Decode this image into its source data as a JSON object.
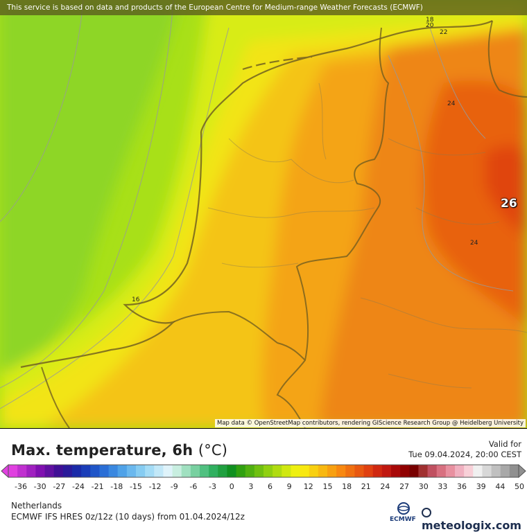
{
  "banner": "This service is based on data and products of the European Centre for Medium-range Weather Forecasts (ECMWF)",
  "attribution": "Map data © OpenStreetMap contributors, rendering GIScience Research Group @ Heidelberg University",
  "map_labels": {
    "max_value": "26",
    "iso_values": [
      "16",
      "18",
      "20",
      "22",
      "24",
      "24"
    ]
  },
  "title": {
    "text": "Max. temperature, 6h",
    "unit": "(°C)"
  },
  "valid": {
    "label": "Valid for",
    "time": "Tue 09.04.2024, 20:00 CEST"
  },
  "legend": {
    "ticks": [
      "-36",
      "-30",
      "-27",
      "-24",
      "-21",
      "-18",
      "-15",
      "-12",
      "-9",
      "-6",
      "-3",
      "0",
      "3",
      "6",
      "9",
      "12",
      "15",
      "18",
      "21",
      "24",
      "27",
      "30",
      "33",
      "36",
      "39",
      "44",
      "50"
    ],
    "colors": [
      "#e040e0",
      "#c030d0",
      "#a020c0",
      "#8010b0",
      "#6010a0",
      "#400f95",
      "#2a1a9a",
      "#1a2aa8",
      "#1a3db8",
      "#1f55c8",
      "#2a6ed6",
      "#3a88e0",
      "#4fa2e8",
      "#6ab8ee",
      "#86ccf2",
      "#a4dcf6",
      "#c2e8f8",
      "#dff3fa",
      "#c8eee0",
      "#a0e0c0",
      "#78d0a0",
      "#50c080",
      "#30b060",
      "#20a040",
      "#109020",
      "#30a010",
      "#50b010",
      "#70c010",
      "#90d010",
      "#b0dc10",
      "#d0e810",
      "#eef010",
      "#f8e810",
      "#f8d010",
      "#f8b810",
      "#f8a010",
      "#f88810",
      "#f07010",
      "#e85810",
      "#e04010",
      "#d02810",
      "#c01810",
      "#a80808",
      "#900000",
      "#780000",
      "#a03030",
      "#c05060",
      "#d87080",
      "#e890a0",
      "#f0b0c0",
      "#f8d0d8",
      "#f0f0f0",
      "#d8d8d8",
      "#c0c0c0",
      "#a8a8a8",
      "#909090"
    ]
  },
  "footer": {
    "region": "Netherlands",
    "model": "ECMWF IFS HRES 0z/12z (10 days) from  01.04.2024/12z",
    "ecmwf": "ECMWF",
    "brand": "meteologix.com"
  }
}
